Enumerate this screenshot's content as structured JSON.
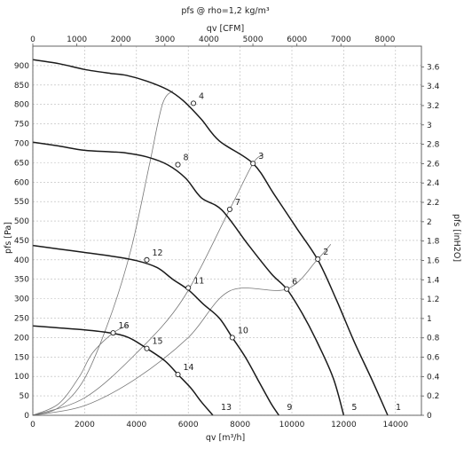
{
  "chart_data": {
    "type": "line",
    "title": "pfs @ rho=1,2 kg/m³",
    "xlabel_bottom": "qv [m³/h]",
    "xlabel_top": "qv [CFM]",
    "ylabel_left": "pfs [Pa]",
    "ylabel_right": "pfs [inH2O]",
    "xlim": [
      0,
      15000
    ],
    "ylim": [
      0,
      950
    ],
    "x_ticks": [
      0,
      2000,
      4000,
      6000,
      8000,
      10000,
      12000,
      14000
    ],
    "y_ticks": [
      0,
      50,
      100,
      150,
      200,
      250,
      300,
      350,
      400,
      450,
      500,
      550,
      600,
      650,
      700,
      750,
      800,
      850,
      900
    ],
    "top_ticks_cfm": [
      0,
      1000,
      2000,
      3000,
      4000,
      5000,
      6000,
      7000,
      8000
    ],
    "cfm_per_m3h": 0.5886,
    "right_ticks_inh2o": [
      0,
      0.2,
      0.4,
      0.6,
      0.8,
      1,
      1.2,
      1.4,
      1.6,
      1.8,
      2,
      2.2,
      2.4,
      2.6,
      2.8,
      3,
      3.2,
      3.4,
      3.6
    ],
    "pa_per_inh2o": 249.09,
    "grid": true,
    "fan_curves": [
      {
        "name": "1",
        "points": [
          [
            0,
            915
          ],
          [
            1000,
            905
          ],
          [
            2000,
            890
          ],
          [
            3000,
            880
          ],
          [
            3600,
            875
          ],
          [
            4400,
            860
          ],
          [
            5200,
            838
          ],
          [
            5800,
            810
          ],
          [
            6500,
            762
          ],
          [
            7200,
            706
          ],
          [
            8500,
            648
          ],
          [
            9300,
            570
          ],
          [
            10200,
            480
          ],
          [
            11000,
            400
          ],
          [
            11700,
            300
          ],
          [
            12400,
            190
          ],
          [
            13100,
            90
          ],
          [
            13700,
            0
          ]
        ]
      },
      {
        "name": "5",
        "points": [
          [
            0,
            703
          ],
          [
            1000,
            693
          ],
          [
            2000,
            682
          ],
          [
            3000,
            678
          ],
          [
            3600,
            675
          ],
          [
            4400,
            665
          ],
          [
            5200,
            645
          ],
          [
            5900,
            610
          ],
          [
            6500,
            560
          ],
          [
            7300,
            528
          ],
          [
            8300,
            440
          ],
          [
            9200,
            365
          ],
          [
            9800,
            325
          ],
          [
            10400,
            262
          ],
          [
            11000,
            185
          ],
          [
            11600,
            95
          ],
          [
            12000,
            0
          ]
        ]
      },
      {
        "name": "9",
        "points": [
          [
            0,
            437
          ],
          [
            1000,
            428
          ],
          [
            2000,
            419
          ],
          [
            3000,
            410
          ],
          [
            4000,
            398
          ],
          [
            4800,
            380
          ],
          [
            5400,
            350
          ],
          [
            6000,
            323
          ],
          [
            6600,
            285
          ],
          [
            7200,
            250
          ],
          [
            7700,
            200
          ],
          [
            8200,
            150
          ],
          [
            8700,
            90
          ],
          [
            9200,
            30
          ],
          [
            9500,
            0
          ]
        ]
      },
      {
        "name": "13",
        "points": [
          [
            0,
            230
          ],
          [
            1000,
            225
          ],
          [
            2000,
            220
          ],
          [
            3000,
            212
          ],
          [
            3700,
            200
          ],
          [
            4400,
            172
          ],
          [
            5100,
            140
          ],
          [
            5600,
            105
          ],
          [
            6100,
            70
          ],
          [
            6500,
            35
          ],
          [
            6950,
            0
          ]
        ]
      }
    ],
    "system_curves": [
      {
        "name": "4",
        "points": [
          [
            0,
            0
          ],
          [
            1000,
            20
          ],
          [
            2000,
            95
          ],
          [
            3000,
            255
          ],
          [
            3800,
            430
          ],
          [
            4500,
            645
          ],
          [
            5000,
            800
          ],
          [
            5400,
            835
          ]
        ]
      },
      {
        "name": "3",
        "points": [
          [
            0,
            0
          ],
          [
            2000,
            45
          ],
          [
            4000,
            160
          ],
          [
            5800,
            300
          ],
          [
            7600,
            530
          ],
          [
            8500,
            648
          ],
          [
            8900,
            670
          ]
        ]
      },
      {
        "name": "2",
        "points": [
          [
            0,
            0
          ],
          [
            2000,
            25
          ],
          [
            4000,
            95
          ],
          [
            6000,
            200
          ],
          [
            7600,
            320
          ],
          [
            9800,
            325
          ],
          [
            11000,
            402
          ],
          [
            11500,
            440
          ]
        ]
      },
      {
        "name": "16",
        "points": [
          [
            0,
            0
          ],
          [
            1000,
            30
          ],
          [
            1800,
            100
          ],
          [
            2300,
            160
          ],
          [
            3100,
            212
          ],
          [
            3700,
            232
          ]
        ]
      }
    ],
    "operating_points": [
      {
        "label": "1",
        "x": 13700,
        "y": 0
      },
      {
        "label": "2",
        "x": 11000,
        "y": 402
      },
      {
        "label": "3",
        "x": 8500,
        "y": 648
      },
      {
        "label": "4",
        "x": 6200,
        "y": 803
      },
      {
        "label": "5",
        "x": 12000,
        "y": 0
      },
      {
        "label": "6",
        "x": 9800,
        "y": 325
      },
      {
        "label": "7",
        "x": 7600,
        "y": 530
      },
      {
        "label": "8",
        "x": 5600,
        "y": 645
      },
      {
        "label": "9",
        "x": 9500,
        "y": 0
      },
      {
        "label": "10",
        "x": 7700,
        "y": 200
      },
      {
        "label": "11",
        "x": 6000,
        "y": 328
      },
      {
        "label": "12",
        "x": 4400,
        "y": 400
      },
      {
        "label": "13",
        "x": 6950,
        "y": 0
      },
      {
        "label": "14",
        "x": 5600,
        "y": 105
      },
      {
        "label": "15",
        "x": 4400,
        "y": 172
      },
      {
        "label": "16",
        "x": 3100,
        "y": 212
      }
    ]
  }
}
